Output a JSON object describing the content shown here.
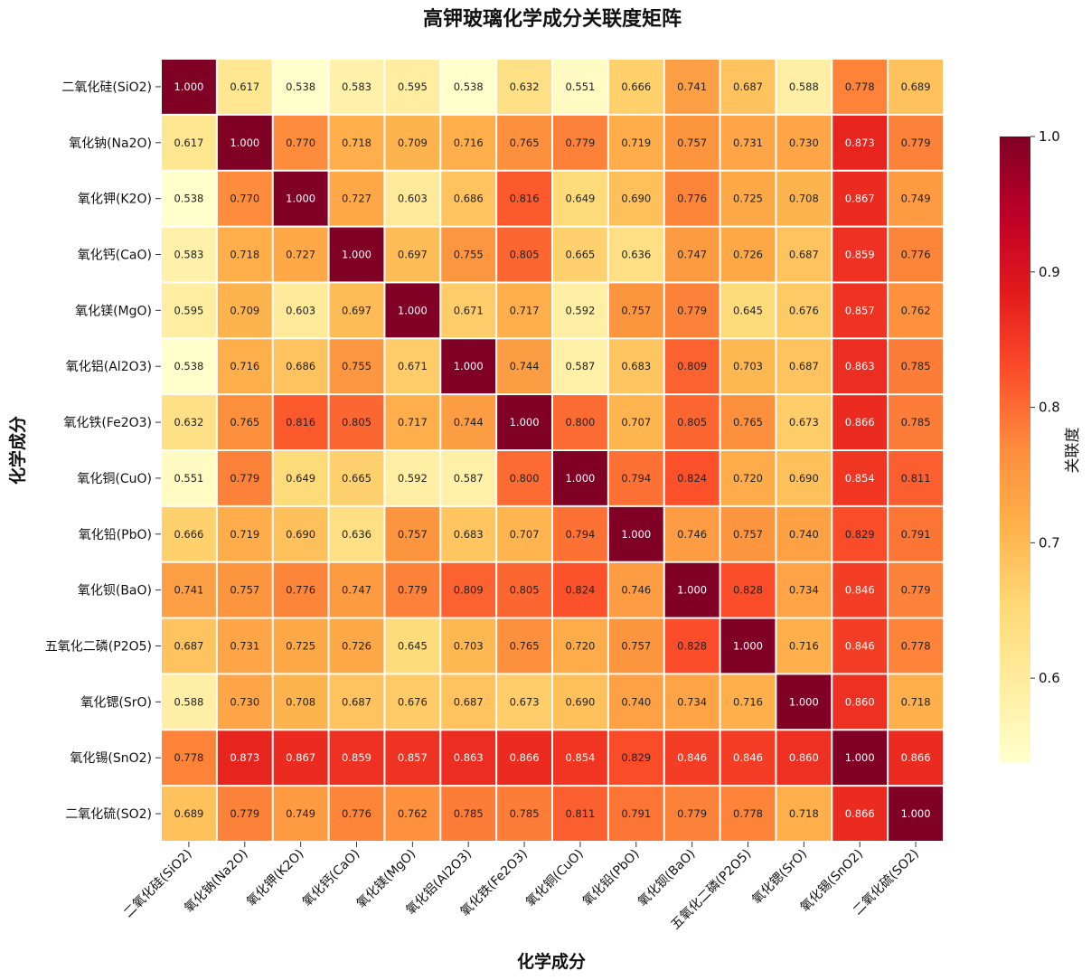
{
  "chart_data": {
    "type": "heatmap",
    "title": "高钾玻璃化学成分关联度矩阵",
    "xlabel": "化学成分",
    "ylabel": "化学成分",
    "categories": [
      "二氧化硅(SiO2)",
      "氧化钠(Na2O)",
      "氧化钾(K2O)",
      "氧化钙(CaO)",
      "氧化镁(MgO)",
      "氧化铝(Al2O3)",
      "氧化铁(Fe2O3)",
      "氧化铜(CuO)",
      "氧化铅(PbO)",
      "氧化钡(BaO)",
      "五氧化二磷(P2O5)",
      "氧化锶(SrO)",
      "氧化锡(SnO2)",
      "二氧化硫(SO2)"
    ],
    "matrix": [
      [
        1.0,
        0.617,
        0.538,
        0.583,
        0.595,
        0.538,
        0.632,
        0.551,
        0.666,
        0.741,
        0.687,
        0.588,
        0.778,
        0.689
      ],
      [
        0.617,
        1.0,
        0.77,
        0.718,
        0.709,
        0.716,
        0.765,
        0.779,
        0.719,
        0.757,
        0.731,
        0.73,
        0.873,
        0.779
      ],
      [
        0.538,
        0.77,
        1.0,
        0.727,
        0.603,
        0.686,
        0.816,
        0.649,
        0.69,
        0.776,
        0.725,
        0.708,
        0.867,
        0.749
      ],
      [
        0.583,
        0.718,
        0.727,
        1.0,
        0.697,
        0.755,
        0.805,
        0.665,
        0.636,
        0.747,
        0.726,
        0.687,
        0.859,
        0.776
      ],
      [
        0.595,
        0.709,
        0.603,
        0.697,
        1.0,
        0.671,
        0.717,
        0.592,
        0.757,
        0.779,
        0.645,
        0.676,
        0.857,
        0.762
      ],
      [
        0.538,
        0.716,
        0.686,
        0.755,
        0.671,
        1.0,
        0.744,
        0.587,
        0.683,
        0.809,
        0.703,
        0.687,
        0.863,
        0.785
      ],
      [
        0.632,
        0.765,
        0.816,
        0.805,
        0.717,
        0.744,
        1.0,
        0.8,
        0.707,
        0.805,
        0.765,
        0.673,
        0.866,
        0.785
      ],
      [
        0.551,
        0.779,
        0.649,
        0.665,
        0.592,
        0.587,
        0.8,
        1.0,
        0.794,
        0.824,
        0.72,
        0.69,
        0.854,
        0.811
      ],
      [
        0.666,
        0.719,
        0.69,
        0.636,
        0.757,
        0.683,
        0.707,
        0.794,
        1.0,
        0.746,
        0.757,
        0.74,
        0.829,
        0.791
      ],
      [
        0.741,
        0.757,
        0.776,
        0.747,
        0.779,
        0.809,
        0.805,
        0.824,
        0.746,
        1.0,
        0.828,
        0.734,
        0.846,
        0.779
      ],
      [
        0.687,
        0.731,
        0.725,
        0.726,
        0.645,
        0.703,
        0.765,
        0.72,
        0.757,
        0.828,
        1.0,
        0.716,
        0.846,
        0.778
      ],
      [
        0.588,
        0.73,
        0.708,
        0.687,
        0.676,
        0.687,
        0.673,
        0.69,
        0.74,
        0.734,
        0.716,
        1.0,
        0.86,
        0.718
      ],
      [
        0.778,
        0.873,
        0.867,
        0.859,
        0.857,
        0.863,
        0.866,
        0.854,
        0.829,
        0.846,
        0.846,
        0.86,
        1.0,
        0.866
      ],
      [
        0.689,
        0.779,
        0.749,
        0.776,
        0.762,
        0.785,
        0.785,
        0.811,
        0.791,
        0.779,
        0.778,
        0.718,
        0.866,
        1.0
      ]
    ],
    "value_format": "3 decimals",
    "colormap": "YlOrRd",
    "color_stops": [
      "#ffffcc",
      "#ffeda0",
      "#fed976",
      "#feb24c",
      "#fd8d3c",
      "#fc4e2a",
      "#e31a1c",
      "#bd0026",
      "#800026"
    ],
    "vmin": 0.538,
    "vmax": 1.0,
    "colorbar": {
      "label": "关联度",
      "ticks": [
        0.6,
        0.7,
        0.8,
        0.9,
        1.0
      ],
      "tick_labels": [
        "0.6",
        "0.7",
        "0.8",
        "0.9",
        "1.0"
      ]
    },
    "grid_line_color": "#ffffff",
    "xtick_rotation_deg": 45
  }
}
